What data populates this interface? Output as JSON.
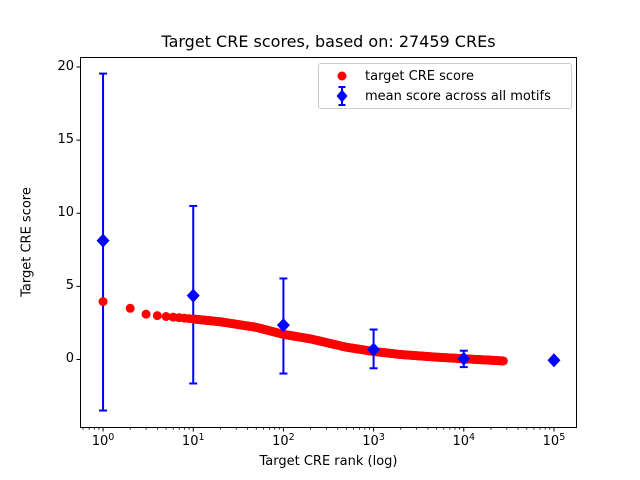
{
  "figure": {
    "title": "Target CRE scores, based on: 27459 CREs",
    "xlabel": "Target CRE rank (log)",
    "ylabel": "Target CRE score"
  },
  "legend": {
    "position": "upper right",
    "items": [
      {
        "label": "target CRE score",
        "marker": "dot",
        "color": "#ff0000"
      },
      {
        "label": "mean score across all motifs",
        "marker": "diamond-errorbar",
        "color": "#0000ff"
      }
    ]
  },
  "chart_data": {
    "type": "scatter",
    "title": "Target CRE scores, based on: 27459 CREs",
    "xlabel": "Target CRE rank (log)",
    "ylabel": "Target CRE score",
    "x_scale": "log",
    "xlim_log10": [
      -0.25,
      5.25
    ],
    "ylim": [
      -4.65,
      20.65
    ],
    "x_tick_exponents": [
      0,
      1,
      2,
      3,
      4,
      5
    ],
    "y_ticks": [
      0,
      5,
      10,
      15,
      20
    ],
    "grid": false,
    "background": "#ffffff",
    "series": [
      {
        "name": "target CRE score",
        "type": "scatter",
        "marker": "circle",
        "color": "#ff0000",
        "n_points": 27459,
        "anchors_rank_score": [
          [
            1,
            3.96
          ],
          [
            2,
            3.5
          ],
          [
            3,
            3.1
          ],
          [
            4,
            3.0
          ],
          [
            5,
            2.94
          ],
          [
            7,
            2.86
          ],
          [
            10,
            2.77
          ],
          [
            20,
            2.58
          ],
          [
            50,
            2.2
          ],
          [
            100,
            1.72
          ],
          [
            200,
            1.41
          ],
          [
            500,
            0.84
          ],
          [
            1000,
            0.55
          ],
          [
            2000,
            0.34
          ],
          [
            5000,
            0.16
          ],
          [
            10000,
            0.05
          ],
          [
            20000,
            -0.05
          ],
          [
            27459,
            -0.1
          ]
        ]
      },
      {
        "name": "mean score across all motifs",
        "type": "errorbar",
        "marker": "diamond",
        "color": "#0000ff",
        "points": [
          {
            "x": 1,
            "y": 8.13,
            "ylo": -3.49,
            "yhi": 19.55
          },
          {
            "x": 10,
            "y": 4.37,
            "ylo": -1.64,
            "yhi": 10.5
          },
          {
            "x": 100,
            "y": 2.35,
            "ylo": -0.96,
            "yhi": 5.54
          },
          {
            "x": 1000,
            "y": 0.68,
            "ylo": -0.6,
            "yhi": 2.05
          },
          {
            "x": 10000,
            "y": 0.05,
            "ylo": -0.52,
            "yhi": 0.6
          },
          {
            "x": 100000,
            "y": -0.05,
            "ylo": -0.12,
            "yhi": 0.02
          }
        ]
      }
    ]
  }
}
